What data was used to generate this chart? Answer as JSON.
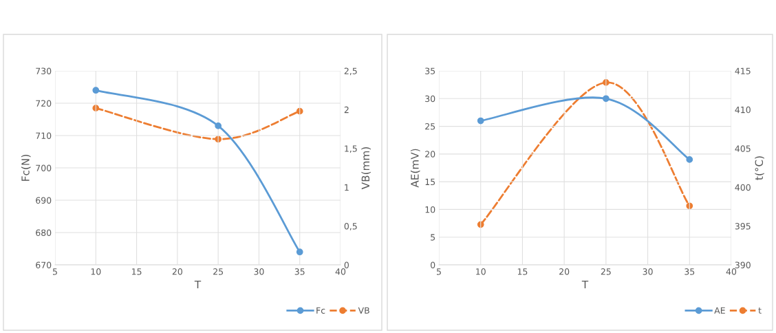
{
  "chart_data": [
    {
      "type": "line",
      "x": [
        10,
        25,
        35
      ],
      "xlabel": "T",
      "ylabel": "Fc(N)",
      "y2label": "VB(mm)",
      "xlim": [
        5,
        40
      ],
      "xticks": [
        5,
        10,
        15,
        20,
        25,
        30,
        35,
        40
      ],
      "ylim": [
        670,
        730
      ],
      "yticks": [
        670,
        680,
        690,
        700,
        710,
        720,
        730
      ],
      "y2lim": [
        0,
        2.5
      ],
      "y2ticks": [
        0,
        {
          "value": 0.5,
          "label": "0,5"
        },
        1,
        {
          "value": 1.5,
          "label": "1,5"
        },
        2,
        {
          "value": 2.5,
          "label": "2,5"
        }
      ],
      "grid": true,
      "legend": "bottom right",
      "marker": "circle",
      "series": [
        {
          "name": "Fc",
          "color": "#5b9bd5",
          "values": [
            724,
            713,
            674
          ],
          "line_style": "solid"
        },
        {
          "name": "VB",
          "color": "#ed7d31",
          "values": [
            2.02,
            1.62,
            1.98
          ],
          "axis": "y2",
          "line_style": "dashed"
        }
      ]
    },
    {
      "type": "line",
      "x": [
        10,
        25,
        35
      ],
      "xlabel": "T",
      "ylabel": "AE(mV)",
      "y2label": "t(°C)",
      "xlim": [
        5,
        40
      ],
      "xticks": [
        5,
        10,
        15,
        20,
        25,
        30,
        35,
        40
      ],
      "ylim": [
        0,
        35
      ],
      "yticks": [
        0,
        5,
        10,
        15,
        20,
        25,
        30,
        35
      ],
      "y2lim": [
        390,
        415
      ],
      "y2ticks": [
        390,
        395,
        400,
        405,
        410,
        415
      ],
      "grid": true,
      "legend": "bottom right",
      "marker": "circle",
      "series": [
        {
          "name": "AE",
          "color": "#5b9bd5",
          "values": [
            26,
            30,
            19
          ],
          "line_style": "solid"
        },
        {
          "name": "t",
          "color": "#ed7d31",
          "values": [
            395.2,
            413.5,
            397.6
          ],
          "axis": "y2",
          "line_style": "dashed"
        }
      ]
    }
  ]
}
